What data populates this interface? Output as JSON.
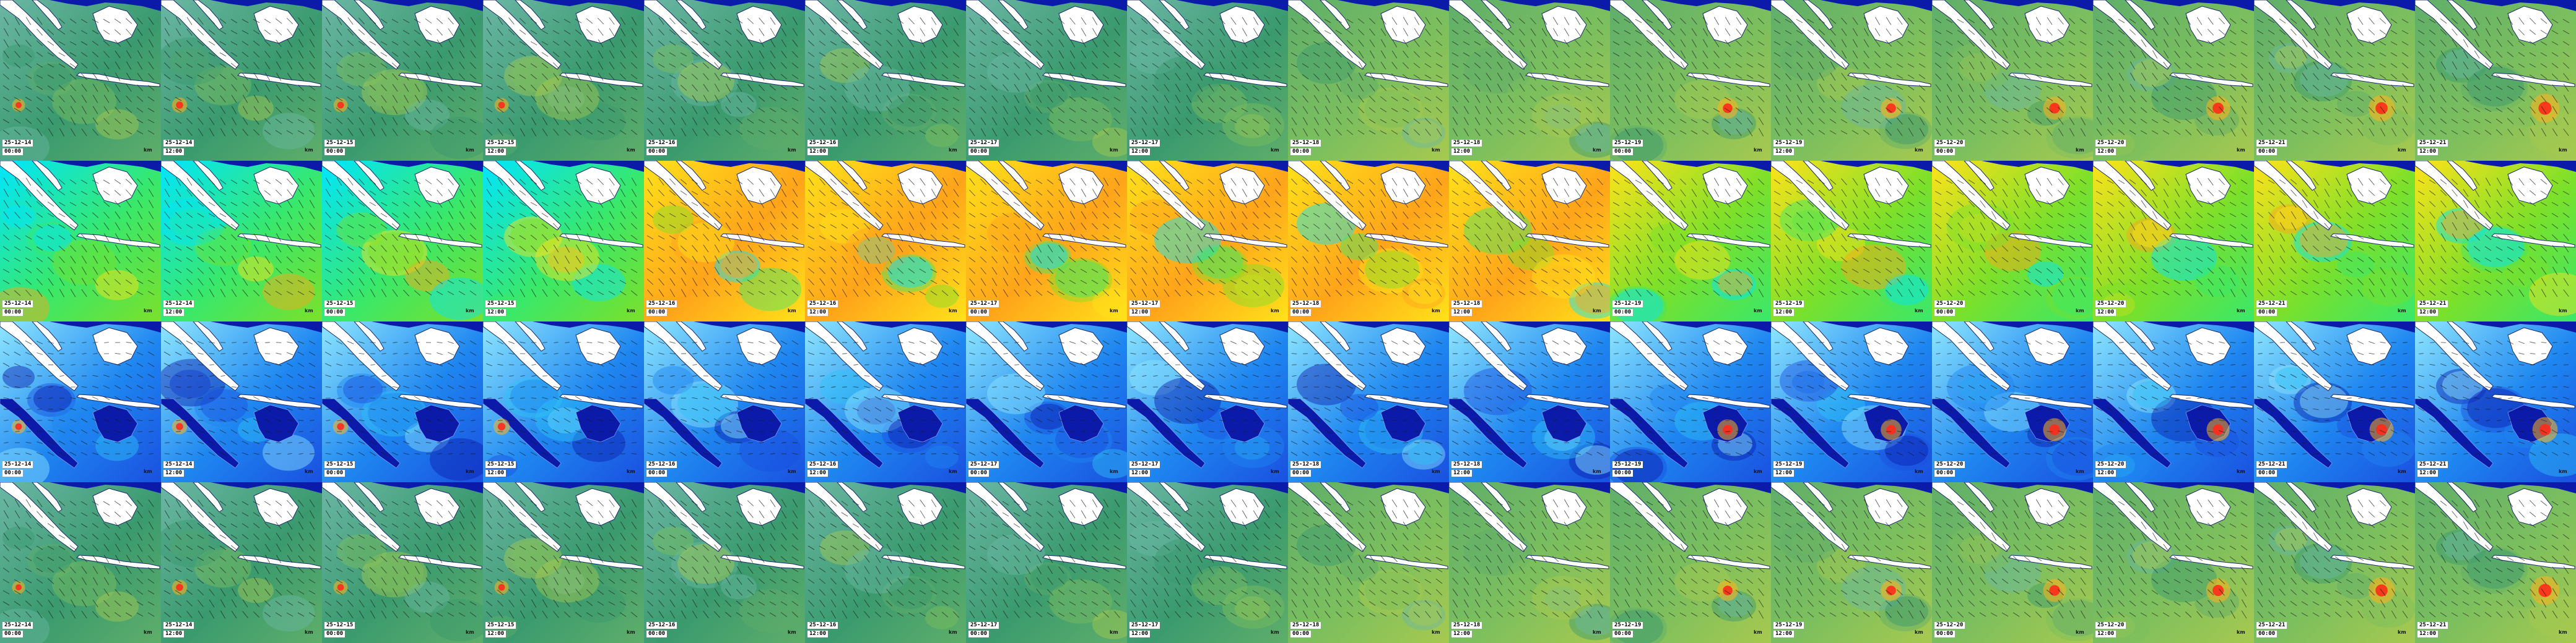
{
  "palettes": {
    "swell": [
      "#3a9a6e",
      "#5fae6a",
      "#7cbf5e",
      "#a7c94f",
      "#6bb7a5"
    ],
    "period": [
      "#00e5ff",
      "#39e86a",
      "#7be02a",
      "#ffe21a",
      "#ffa41a"
    ],
    "wind": [
      "#0a1fb0",
      "#1a50e0",
      "#1e86f0",
      "#2fc4f7",
      "#8fe7ff"
    ],
    "land": "#ffffff",
    "deep_land": "#0b1aa8",
    "storm": [
      "#ff2a1a",
      "#ffb21a"
    ]
  },
  "rows": [
    {
      "kind": "swell",
      "frames": [
        {
          "date": "25-12-14",
          "time": "00:00",
          "scale": "km",
          "storm": 0.25
        },
        {
          "date": "25-12-14",
          "time": "12:00",
          "scale": "km",
          "storm": 0.35
        },
        {
          "date": "25-12-15",
          "time": "00:00",
          "scale": "km",
          "storm": 0.3
        },
        {
          "date": "25-12-15",
          "time": "12:00",
          "scale": "km",
          "storm": 0.3
        },
        {
          "date": "25-12-16",
          "time": "00:00",
          "scale": "km",
          "storm": 0
        },
        {
          "date": "25-12-16",
          "time": "12:00",
          "scale": "km",
          "storm": 0
        },
        {
          "date": "25-12-17",
          "time": "00:00",
          "scale": "km",
          "storm": 0
        },
        {
          "date": "25-12-17",
          "time": "12:00",
          "scale": "km",
          "storm": 0
        },
        {
          "date": "25-12-18",
          "time": "00:00",
          "scale": "km",
          "storm": 0
        },
        {
          "date": "25-12-18",
          "time": "12:00",
          "scale": "km",
          "storm": 0
        },
        {
          "date": "25-12-19",
          "time": "00:00",
          "scale": "km",
          "storm": 0.6
        },
        {
          "date": "25-12-19",
          "time": "12:00",
          "scale": "km",
          "storm": 0.6
        },
        {
          "date": "25-12-20",
          "time": "00:00",
          "scale": "km",
          "storm": 0.7
        },
        {
          "date": "25-12-20",
          "time": "12:00",
          "scale": "km",
          "storm": 0.75
        },
        {
          "date": "25-12-21",
          "time": "00:00",
          "scale": "km",
          "storm": 0.85
        },
        {
          "date": "25-12-21",
          "time": "12:00",
          "scale": "km",
          "storm": 0.95
        }
      ]
    },
    {
      "kind": "period",
      "frames": [
        {
          "date": "25-12-14",
          "time": "00:00",
          "scale": "km"
        },
        {
          "date": "25-12-14",
          "time": "12:00",
          "scale": "km"
        },
        {
          "date": "25-12-15",
          "time": "00:00",
          "scale": "km"
        },
        {
          "date": "25-12-15",
          "time": "12:00",
          "scale": "km"
        },
        {
          "date": "25-12-16",
          "time": "00:00",
          "scale": "km"
        },
        {
          "date": "25-12-16",
          "time": "12:00",
          "scale": "km"
        },
        {
          "date": "25-12-17",
          "time": "00:00",
          "scale": "km"
        },
        {
          "date": "25-12-17",
          "time": "12:00",
          "scale": "km"
        },
        {
          "date": "25-12-18",
          "time": "00:00",
          "scale": "km"
        },
        {
          "date": "25-12-18",
          "time": "12:00",
          "scale": "km"
        },
        {
          "date": "25-12-19",
          "time": "00:00",
          "scale": "km"
        },
        {
          "date": "25-12-19",
          "time": "12:00",
          "scale": "km"
        },
        {
          "date": "25-12-20",
          "time": "00:00",
          "scale": "km"
        },
        {
          "date": "25-12-20",
          "time": "12:00",
          "scale": "km"
        },
        {
          "date": "25-12-21",
          "time": "00:00",
          "scale": "km"
        },
        {
          "date": "25-12-21",
          "time": "12:00",
          "scale": "km"
        }
      ]
    },
    {
      "kind": "wind",
      "frames": [
        {
          "date": "25-12-14",
          "time": "00:00",
          "scale": "km",
          "storm": 0.3
        },
        {
          "date": "25-12-14",
          "time": "12:00",
          "scale": "km",
          "storm": 0.35
        },
        {
          "date": "25-12-15",
          "time": "00:00",
          "scale": "km",
          "storm": 0.35
        },
        {
          "date": "25-12-15",
          "time": "12:00",
          "scale": "km",
          "storm": 0.4
        },
        {
          "date": "25-12-16",
          "time": "00:00",
          "scale": "km",
          "storm": 0
        },
        {
          "date": "25-12-16",
          "time": "12:00",
          "scale": "km",
          "storm": 0
        },
        {
          "date": "25-12-17",
          "time": "00:00",
          "scale": "km",
          "storm": 0
        },
        {
          "date": "25-12-17",
          "time": "12:00",
          "scale": "km",
          "storm": 0
        },
        {
          "date": "25-12-18",
          "time": "00:00",
          "scale": "km",
          "storm": 0
        },
        {
          "date": "25-12-18",
          "time": "12:00",
          "scale": "km",
          "storm": 0
        },
        {
          "date": "25-12-19",
          "time": "00:00",
          "scale": "km",
          "storm": 0.6
        },
        {
          "date": "25-12-19",
          "time": "12:00",
          "scale": "km",
          "storm": 0.6
        },
        {
          "date": "25-12-20",
          "time": "00:00",
          "scale": "km",
          "storm": 0.7
        },
        {
          "date": "25-12-20",
          "time": "12:00",
          "scale": "km",
          "storm": 0.7
        },
        {
          "date": "25-12-21",
          "time": "00:00",
          "scale": "km",
          "storm": 0.75
        },
        {
          "date": "25-12-21",
          "time": "12:00",
          "scale": "km",
          "storm": 0.8
        }
      ]
    },
    {
      "kind": "swell",
      "frames": [
        {
          "date": "25-12-14",
          "time": "00:00",
          "scale": "km",
          "storm": 0.25
        },
        {
          "date": "25-12-14",
          "time": "12:00",
          "scale": "km",
          "storm": 0.35
        },
        {
          "date": "25-12-15",
          "time": "00:00",
          "scale": "km",
          "storm": 0.3
        },
        {
          "date": "25-12-15",
          "time": "12:00",
          "scale": "km",
          "storm": 0.3
        },
        {
          "date": "25-12-16",
          "time": "00:00",
          "scale": "km",
          "storm": 0
        },
        {
          "date": "25-12-16",
          "time": "12:00",
          "scale": "km",
          "storm": 0
        },
        {
          "date": "25-12-17",
          "time": "00:00",
          "scale": "km",
          "storm": 0
        },
        {
          "date": "25-12-17",
          "time": "12:00",
          "scale": "km",
          "storm": 0
        },
        {
          "date": "25-12-18",
          "time": "00:00",
          "scale": "km",
          "storm": 0
        },
        {
          "date": "25-12-18",
          "time": "12:00",
          "scale": "km",
          "storm": 0
        },
        {
          "date": "25-12-19",
          "time": "00:00",
          "scale": "km",
          "storm": 0.6
        },
        {
          "date": "25-12-19",
          "time": "12:00",
          "scale": "km",
          "storm": 0.6
        },
        {
          "date": "25-12-20",
          "time": "00:00",
          "scale": "km",
          "storm": 0.7
        },
        {
          "date": "25-12-20",
          "time": "12:00",
          "scale": "km",
          "storm": 0.75
        },
        {
          "date": "25-12-21",
          "time": "00:00",
          "scale": "km",
          "storm": 0.85
        },
        {
          "date": "25-12-21",
          "time": "12:00",
          "scale": "km",
          "storm": 0.95
        }
      ]
    }
  ]
}
